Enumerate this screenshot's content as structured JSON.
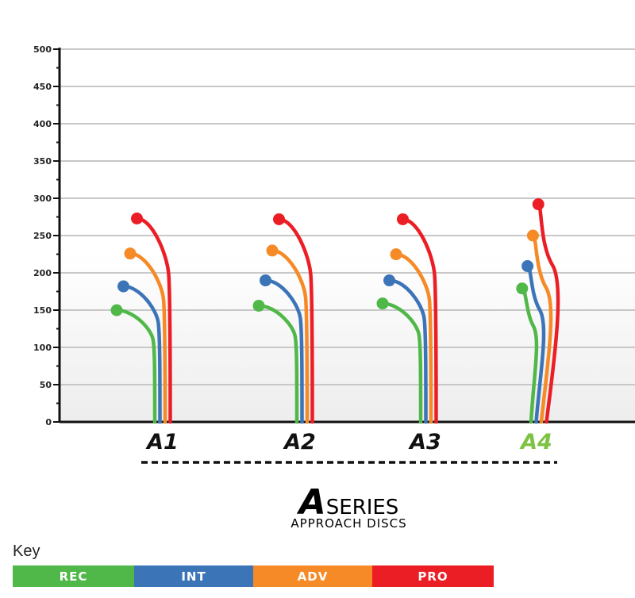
{
  "chart_data": {
    "type": "line",
    "title": "",
    "xlabel": "",
    "ylabel": "",
    "ylim": [
      0,
      500
    ],
    "yticks": [
      0,
      50,
      100,
      150,
      200,
      250,
      300,
      350,
      400,
      450,
      500
    ],
    "grid": true,
    "categories": [
      "A1",
      "A2",
      "A3",
      "A4"
    ],
    "highlight_category": "A4",
    "highlight_color": "#7dc242",
    "series": [
      {
        "name": "REC",
        "color": "#50b848",
        "values": [
          152,
          158,
          161,
          179
        ]
      },
      {
        "name": "INT",
        "color": "#3c74b8",
        "values": [
          184,
          192,
          192,
          209
        ]
      },
      {
        "name": "ADV",
        "color": "#f58a26",
        "values": [
          228,
          232,
          227,
          250
        ]
      },
      {
        "name": "PRO",
        "color": "#ec1e25",
        "values": [
          275,
          274,
          274,
          292
        ]
      }
    ]
  },
  "branding": {
    "title_letter": "A",
    "title_word": "SERIES",
    "subtitle": "APPROACH DISCS"
  },
  "key": {
    "label": "Key",
    "items": [
      {
        "label": "REC",
        "color": "#50b848"
      },
      {
        "label": "INT",
        "color": "#3c74b8"
      },
      {
        "label": "ADV",
        "color": "#f58a26"
      },
      {
        "label": "PRO",
        "color": "#ec1e25"
      }
    ]
  }
}
